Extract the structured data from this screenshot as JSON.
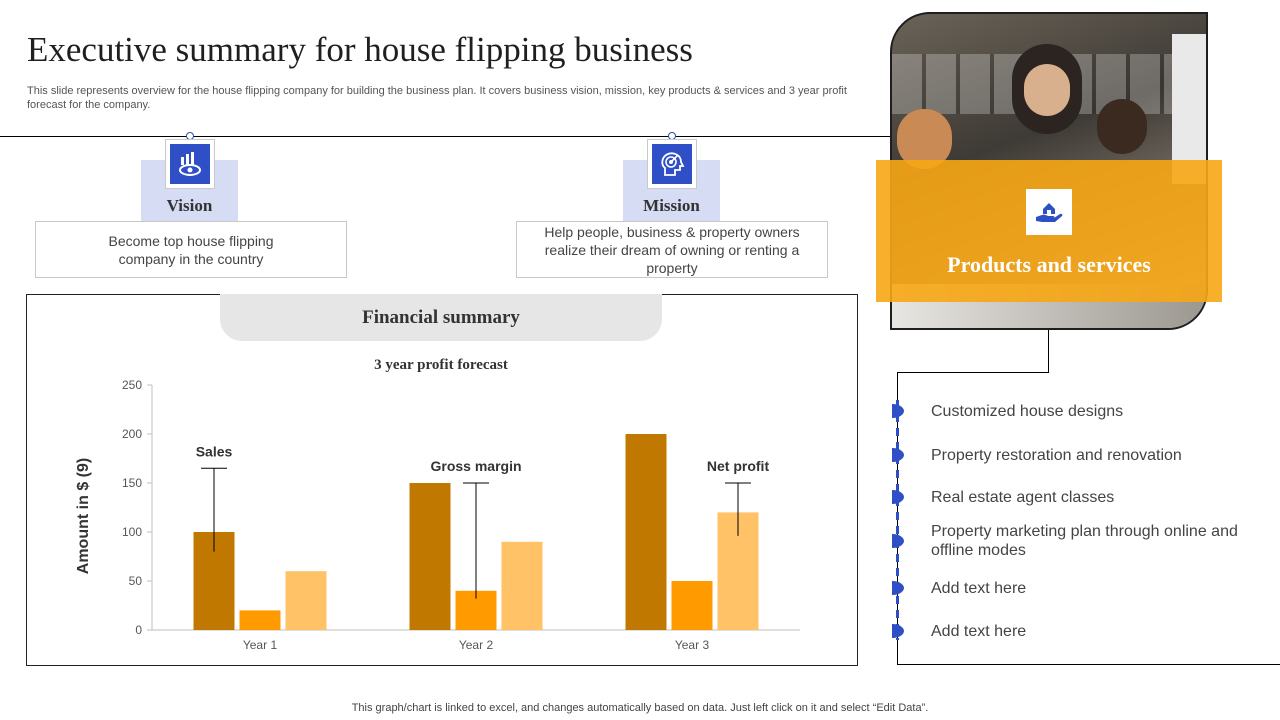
{
  "header": {
    "title": "Executive summary for house flipping business",
    "subtitle": "This slide represents overview for the house flipping company for building the business plan. It covers business vision, mission, key products & services and 3 year profit forecast for the company."
  },
  "vision": {
    "label": "Vision",
    "text": "Become top house flipping company in the country",
    "icon": "eye-growth-icon"
  },
  "mission": {
    "label": "Mission",
    "text": "Help people, business & property owners realize their dream of owning or renting a property",
    "icon": "target-head-icon"
  },
  "financial": {
    "header": "Financial summary"
  },
  "products": {
    "title": "Products and services",
    "icon": "hand-house-icon",
    "items": [
      "Customized house designs",
      "Property restoration and renovation",
      "Real estate agent classes",
      "Property marketing plan through online and offline modes",
      "Add text here",
      "Add text here"
    ]
  },
  "footer": {
    "note": "This graph/chart is linked to excel,  and changes automatically based on data. Just left click on it and select “Edit Data”."
  },
  "colors": {
    "accent_blue": "#2f4fc7",
    "orange": "#f7a614",
    "bar_dark": "#c07800",
    "bar_mid": "#ff9a00",
    "bar_light": "#ffc266"
  },
  "chart_data": {
    "type": "bar",
    "title": "3 year profit  forecast",
    "ylabel": "Amount in $ (9)",
    "xlabel": "",
    "categories": [
      "Year 1",
      "Year 2",
      "Year 3"
    ],
    "series": [
      {
        "values": [
          100,
          150,
          200
        ],
        "color": "#c07800"
      },
      {
        "values": [
          20,
          40,
          50
        ],
        "color": "#ff9a00"
      },
      {
        "values": [
          60,
          90,
          120
        ],
        "color": "#ffc266"
      }
    ],
    "ylim": [
      0,
      250
    ],
    "yticks": [
      0,
      50,
      100,
      150,
      200,
      250
    ],
    "annotations": [
      {
        "text": "Sales",
        "category": "Year 1"
      },
      {
        "text": "Gross margin",
        "category": "Year 2"
      },
      {
        "text": "Net profit",
        "category": "Year 3"
      }
    ],
    "grid": false,
    "legend": "none"
  }
}
